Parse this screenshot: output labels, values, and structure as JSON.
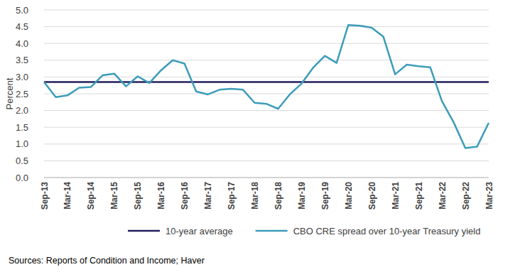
{
  "chart_data": {
    "type": "line",
    "y_label": "Percent",
    "source": "Sources: Reports of Condition and Income; Haver",
    "categories": [
      "Sep-13",
      null,
      "Mar-14",
      null,
      "Sep-14",
      null,
      "Mar-15",
      null,
      "Sep-15",
      null,
      "Mar-16",
      null,
      "Sep-16",
      null,
      "Mar-17",
      null,
      "Sep-17",
      null,
      "Mar-18",
      null,
      "Sep-18",
      null,
      "Mar-19",
      null,
      "Sep-19",
      null,
      "Mar-20",
      null,
      "Sep-20",
      null,
      "Mar-21",
      null,
      "Sep-21",
      null,
      "Mar-22",
      null,
      "Sep-22",
      null,
      "Mar-23"
    ],
    "series": [
      {
        "name": "10-year average",
        "color": "#221f5c",
        "values": [
          2.85,
          2.85,
          2.85,
          2.85,
          2.85,
          2.85,
          2.85,
          2.85,
          2.85,
          2.85,
          2.85,
          2.85,
          2.85,
          2.85,
          2.85,
          2.85,
          2.85,
          2.85,
          2.85,
          2.85,
          2.85,
          2.85,
          2.85,
          2.85,
          2.85,
          2.85,
          2.85,
          2.85,
          2.85,
          2.85,
          2.85,
          2.85,
          2.85,
          2.85,
          2.85,
          2.85,
          2.85,
          2.85,
          2.85
        ]
      },
      {
        "name": "CBO CRE spread over 10-year Treasury yield",
        "color": "#3d9cba",
        "values": [
          2.85,
          2.4,
          2.45,
          2.68,
          2.7,
          3.05,
          3.1,
          2.72,
          3.02,
          2.82,
          3.2,
          3.5,
          3.4,
          2.57,
          2.48,
          2.62,
          2.65,
          2.62,
          2.23,
          2.2,
          2.05,
          2.48,
          2.8,
          3.28,
          3.63,
          3.42,
          4.55,
          4.53,
          4.47,
          4.2,
          3.08,
          3.37,
          3.32,
          3.29,
          2.28,
          1.65,
          0.88,
          0.92,
          1.63
        ]
      }
    ],
    "ylim": [
      0,
      5
    ],
    "yticks": [
      {
        "value": 0,
        "label": "0.0"
      },
      {
        "value": 0.5,
        "label": "0.5"
      },
      {
        "value": 1,
        "label": "1.0"
      },
      {
        "value": 1.5,
        "label": "1.5"
      },
      {
        "value": 2,
        "label": "2.0"
      },
      {
        "value": 2.5,
        "label": "2.5"
      },
      {
        "value": 3,
        "label": "3.0"
      },
      {
        "value": 3.5,
        "label": "3.5"
      },
      {
        "value": 4,
        "label": "4.0"
      },
      {
        "value": 4.5,
        "label": "4.5"
      },
      {
        "value": 5,
        "label": "5.0"
      }
    ],
    "grid": true,
    "legend": "bottom"
  }
}
